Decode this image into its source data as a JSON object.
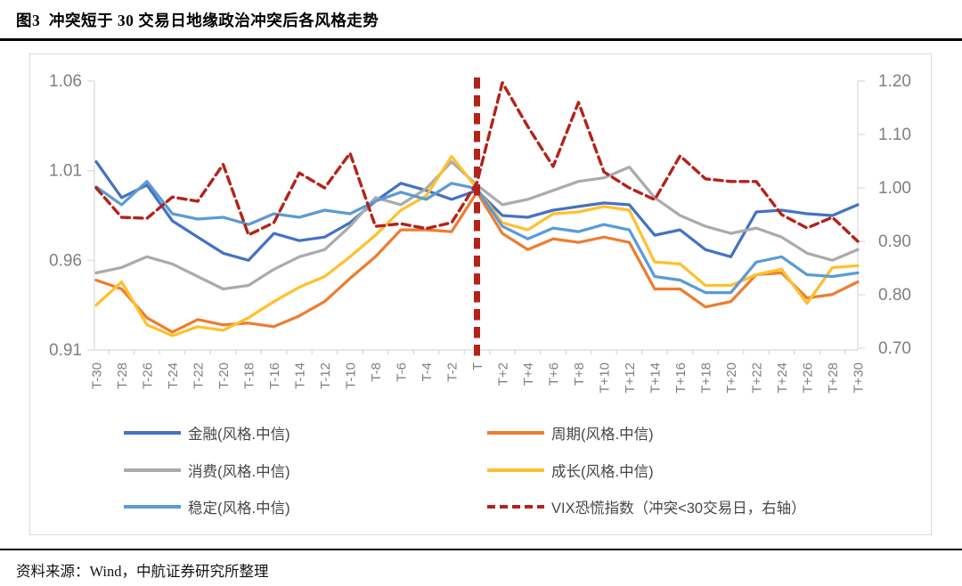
{
  "figure": {
    "title": "图3  冲突短于 30 交易日地缘政治冲突后各风格走势",
    "source_note": "资料来源：Wind，中航证券研究所整理"
  },
  "chart_data": {
    "type": "line",
    "title": "冲突短于30交易日地缘政治冲突后各风格走势",
    "categories": [
      "T-30",
      "T-28",
      "T-26",
      "T-24",
      "T-22",
      "T-20",
      "T-18",
      "T-16",
      "T-14",
      "T-12",
      "T-10",
      "T-8",
      "T-6",
      "T-4",
      "T-2",
      "T",
      "T+2",
      "T+4",
      "T+6",
      "T+8",
      "T+10",
      "T+12",
      "T+14",
      "T+16",
      "T+18",
      "T+20",
      "T+22",
      "T+24",
      "T+26",
      "T+28",
      "T+30"
    ],
    "x_axis": {
      "label_rotation": -90
    },
    "left_axis": {
      "min": 0.91,
      "max": 1.06,
      "tick_labels": [
        "1.06",
        "1.01",
        "0.96",
        "0.91"
      ]
    },
    "right_axis": {
      "min": 0.7,
      "max": 1.2,
      "tick_labels": [
        "1.20",
        "1.10",
        "1.00",
        "0.90",
        "0.80",
        "0.70"
      ]
    },
    "event_line": {
      "category": "T",
      "style": "dashed",
      "color": "#b3231a"
    },
    "legend_position": "bottom",
    "grid": false,
    "series": [
      {
        "key": "finance",
        "name": "金融(风格.中信)",
        "color": "#4472c4",
        "axis": "left",
        "dash": false,
        "values": [
          1.015,
          0.995,
          1.002,
          0.982,
          0.973,
          0.964,
          0.96,
          0.975,
          0.971,
          0.973,
          0.981,
          0.993,
          1.003,
          0.999,
          0.994,
          0.999,
          0.985,
          0.984,
          0.988,
          0.99,
          0.992,
          0.991,
          0.974,
          0.977,
          0.966,
          0.962,
          0.987,
          0.988,
          0.986,
          0.985,
          0.991
        ]
      },
      {
        "key": "cycle",
        "name": "周期(风格.中信)",
        "color": "#ed7d31",
        "axis": "left",
        "dash": false,
        "values": [
          0.949,
          0.944,
          0.928,
          0.92,
          0.927,
          0.924,
          0.925,
          0.923,
          0.929,
          0.937,
          0.95,
          0.962,
          0.977,
          0.977,
          0.976,
          0.998,
          0.975,
          0.966,
          0.972,
          0.97,
          0.973,
          0.97,
          0.944,
          0.944,
          0.934,
          0.937,
          0.952,
          0.953,
          0.939,
          0.941,
          0.948
        ]
      },
      {
        "key": "consumer",
        "name": "消费(风格.中信)",
        "color": "#ababab",
        "axis": "left",
        "dash": false,
        "values": [
          0.953,
          0.956,
          0.962,
          0.958,
          0.951,
          0.944,
          0.946,
          0.955,
          0.962,
          0.966,
          0.979,
          0.995,
          0.991,
          1.0,
          1.015,
          1.002,
          0.991,
          0.994,
          0.999,
          1.004,
          1.006,
          1.012,
          0.995,
          0.985,
          0.979,
          0.975,
          0.978,
          0.973,
          0.964,
          0.96,
          0.966
        ]
      },
      {
        "key": "growth",
        "name": "成长(风格.中信)",
        "color": "#ffc02e",
        "axis": "left",
        "dash": false,
        "values": [
          0.935,
          0.948,
          0.924,
          0.918,
          0.923,
          0.921,
          0.928,
          0.937,
          0.945,
          0.951,
          0.962,
          0.974,
          0.988,
          0.996,
          1.018,
          1.0,
          0.981,
          0.977,
          0.986,
          0.987,
          0.99,
          0.988,
          0.959,
          0.958,
          0.946,
          0.946,
          0.952,
          0.955,
          0.936,
          0.956,
          0.957
        ]
      },
      {
        "key": "stable",
        "name": "稳定(风格.中信)",
        "color": "#5b9bd5",
        "axis": "left",
        "dash": false,
        "values": [
          1.001,
          0.991,
          1.004,
          0.986,
          0.983,
          0.984,
          0.98,
          0.986,
          0.984,
          0.988,
          0.986,
          0.993,
          0.998,
          0.994,
          1.003,
          1.0,
          0.979,
          0.972,
          0.978,
          0.976,
          0.98,
          0.977,
          0.951,
          0.949,
          0.942,
          0.942,
          0.959,
          0.962,
          0.952,
          0.951,
          0.953
        ]
      },
      {
        "key": "vix",
        "name": "VIX恐慌指数（冲突<30交易日，右轴）",
        "color": "#b3231a",
        "axis": "right",
        "dash": true,
        "values": [
          1.0,
          0.945,
          0.943,
          0.983,
          0.975,
          1.044,
          0.912,
          0.935,
          1.028,
          1.0,
          1.065,
          0.928,
          0.933,
          0.924,
          0.935,
          1.01,
          1.197,
          1.115,
          1.04,
          1.16,
          1.03,
          1.0,
          0.978,
          1.06,
          1.017,
          1.012,
          1.012,
          0.95,
          0.925,
          0.945,
          0.9
        ]
      }
    ]
  }
}
